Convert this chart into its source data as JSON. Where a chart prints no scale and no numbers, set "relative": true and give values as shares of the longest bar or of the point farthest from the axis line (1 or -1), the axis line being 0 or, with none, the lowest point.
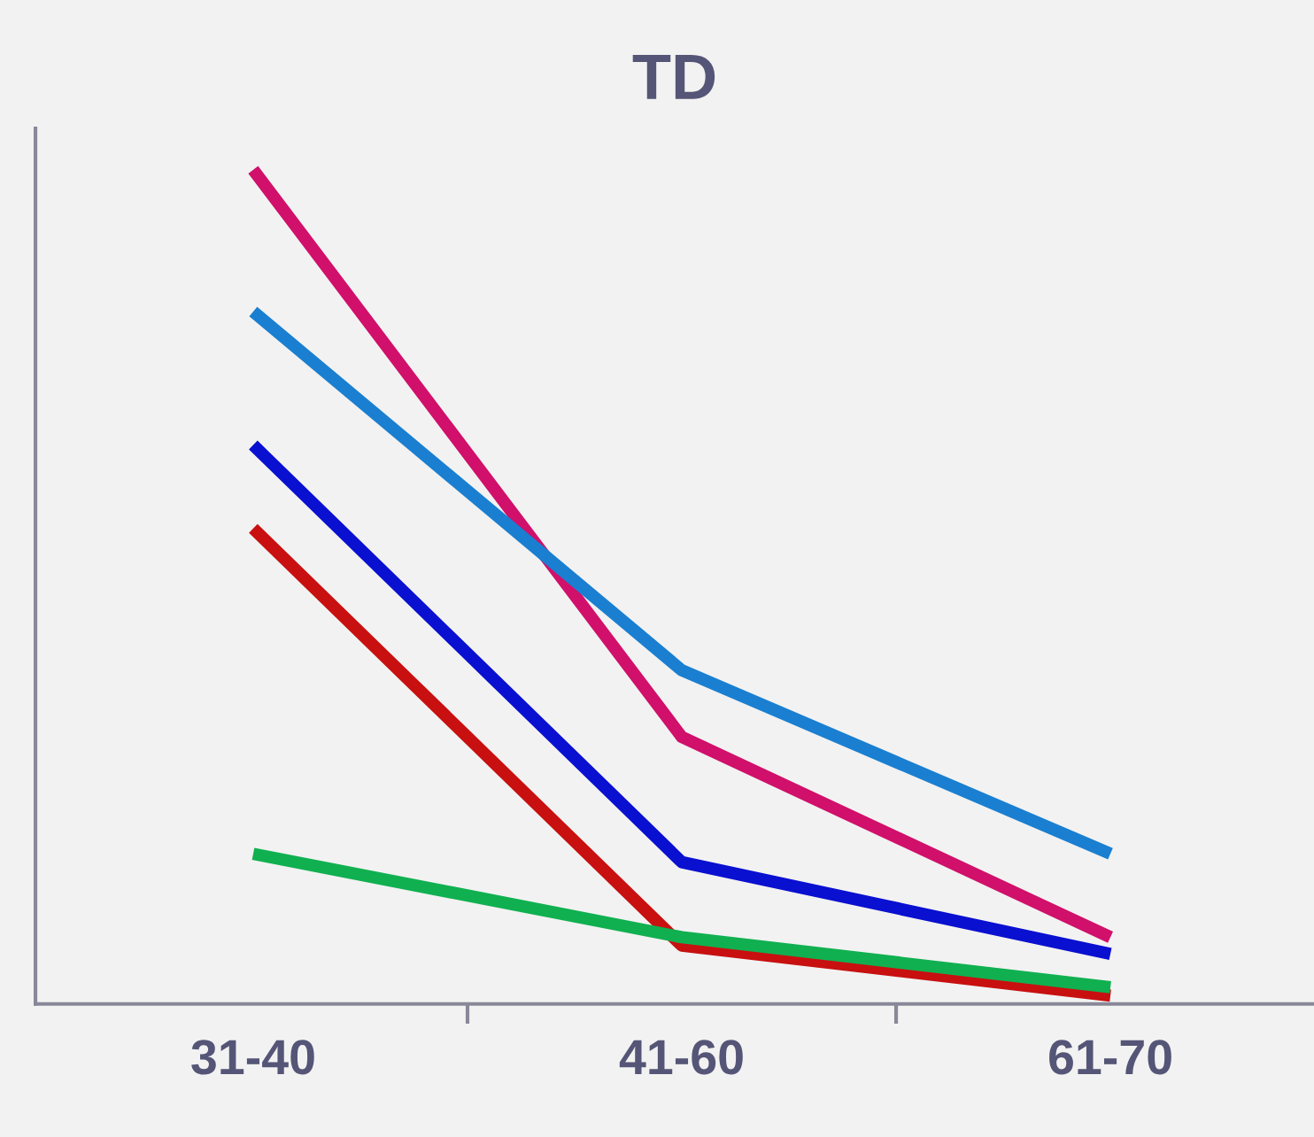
{
  "chart_data": {
    "type": "line",
    "title": "TD",
    "relative": true,
    "categories": [
      "31-40",
      "41-60",
      "61-70"
    ],
    "series": [
      {
        "color": "#d0106a",
        "values": [
          1,
          0.32,
          0.08
        ]
      },
      {
        "color": "#1a7fd0",
        "values": [
          0.83,
          0.4,
          0.18
        ]
      },
      {
        "color": "#0a10d0",
        "values": [
          0.67,
          0.17,
          0.06
        ]
      },
      {
        "color": "#c81010",
        "values": [
          0.57,
          0.07,
          0.01
        ]
      },
      {
        "color": "#10b050",
        "values": [
          0.18,
          0.08,
          0.02
        ]
      }
    ],
    "grid": false,
    "marker": "none",
    "line_style": "solid"
  }
}
